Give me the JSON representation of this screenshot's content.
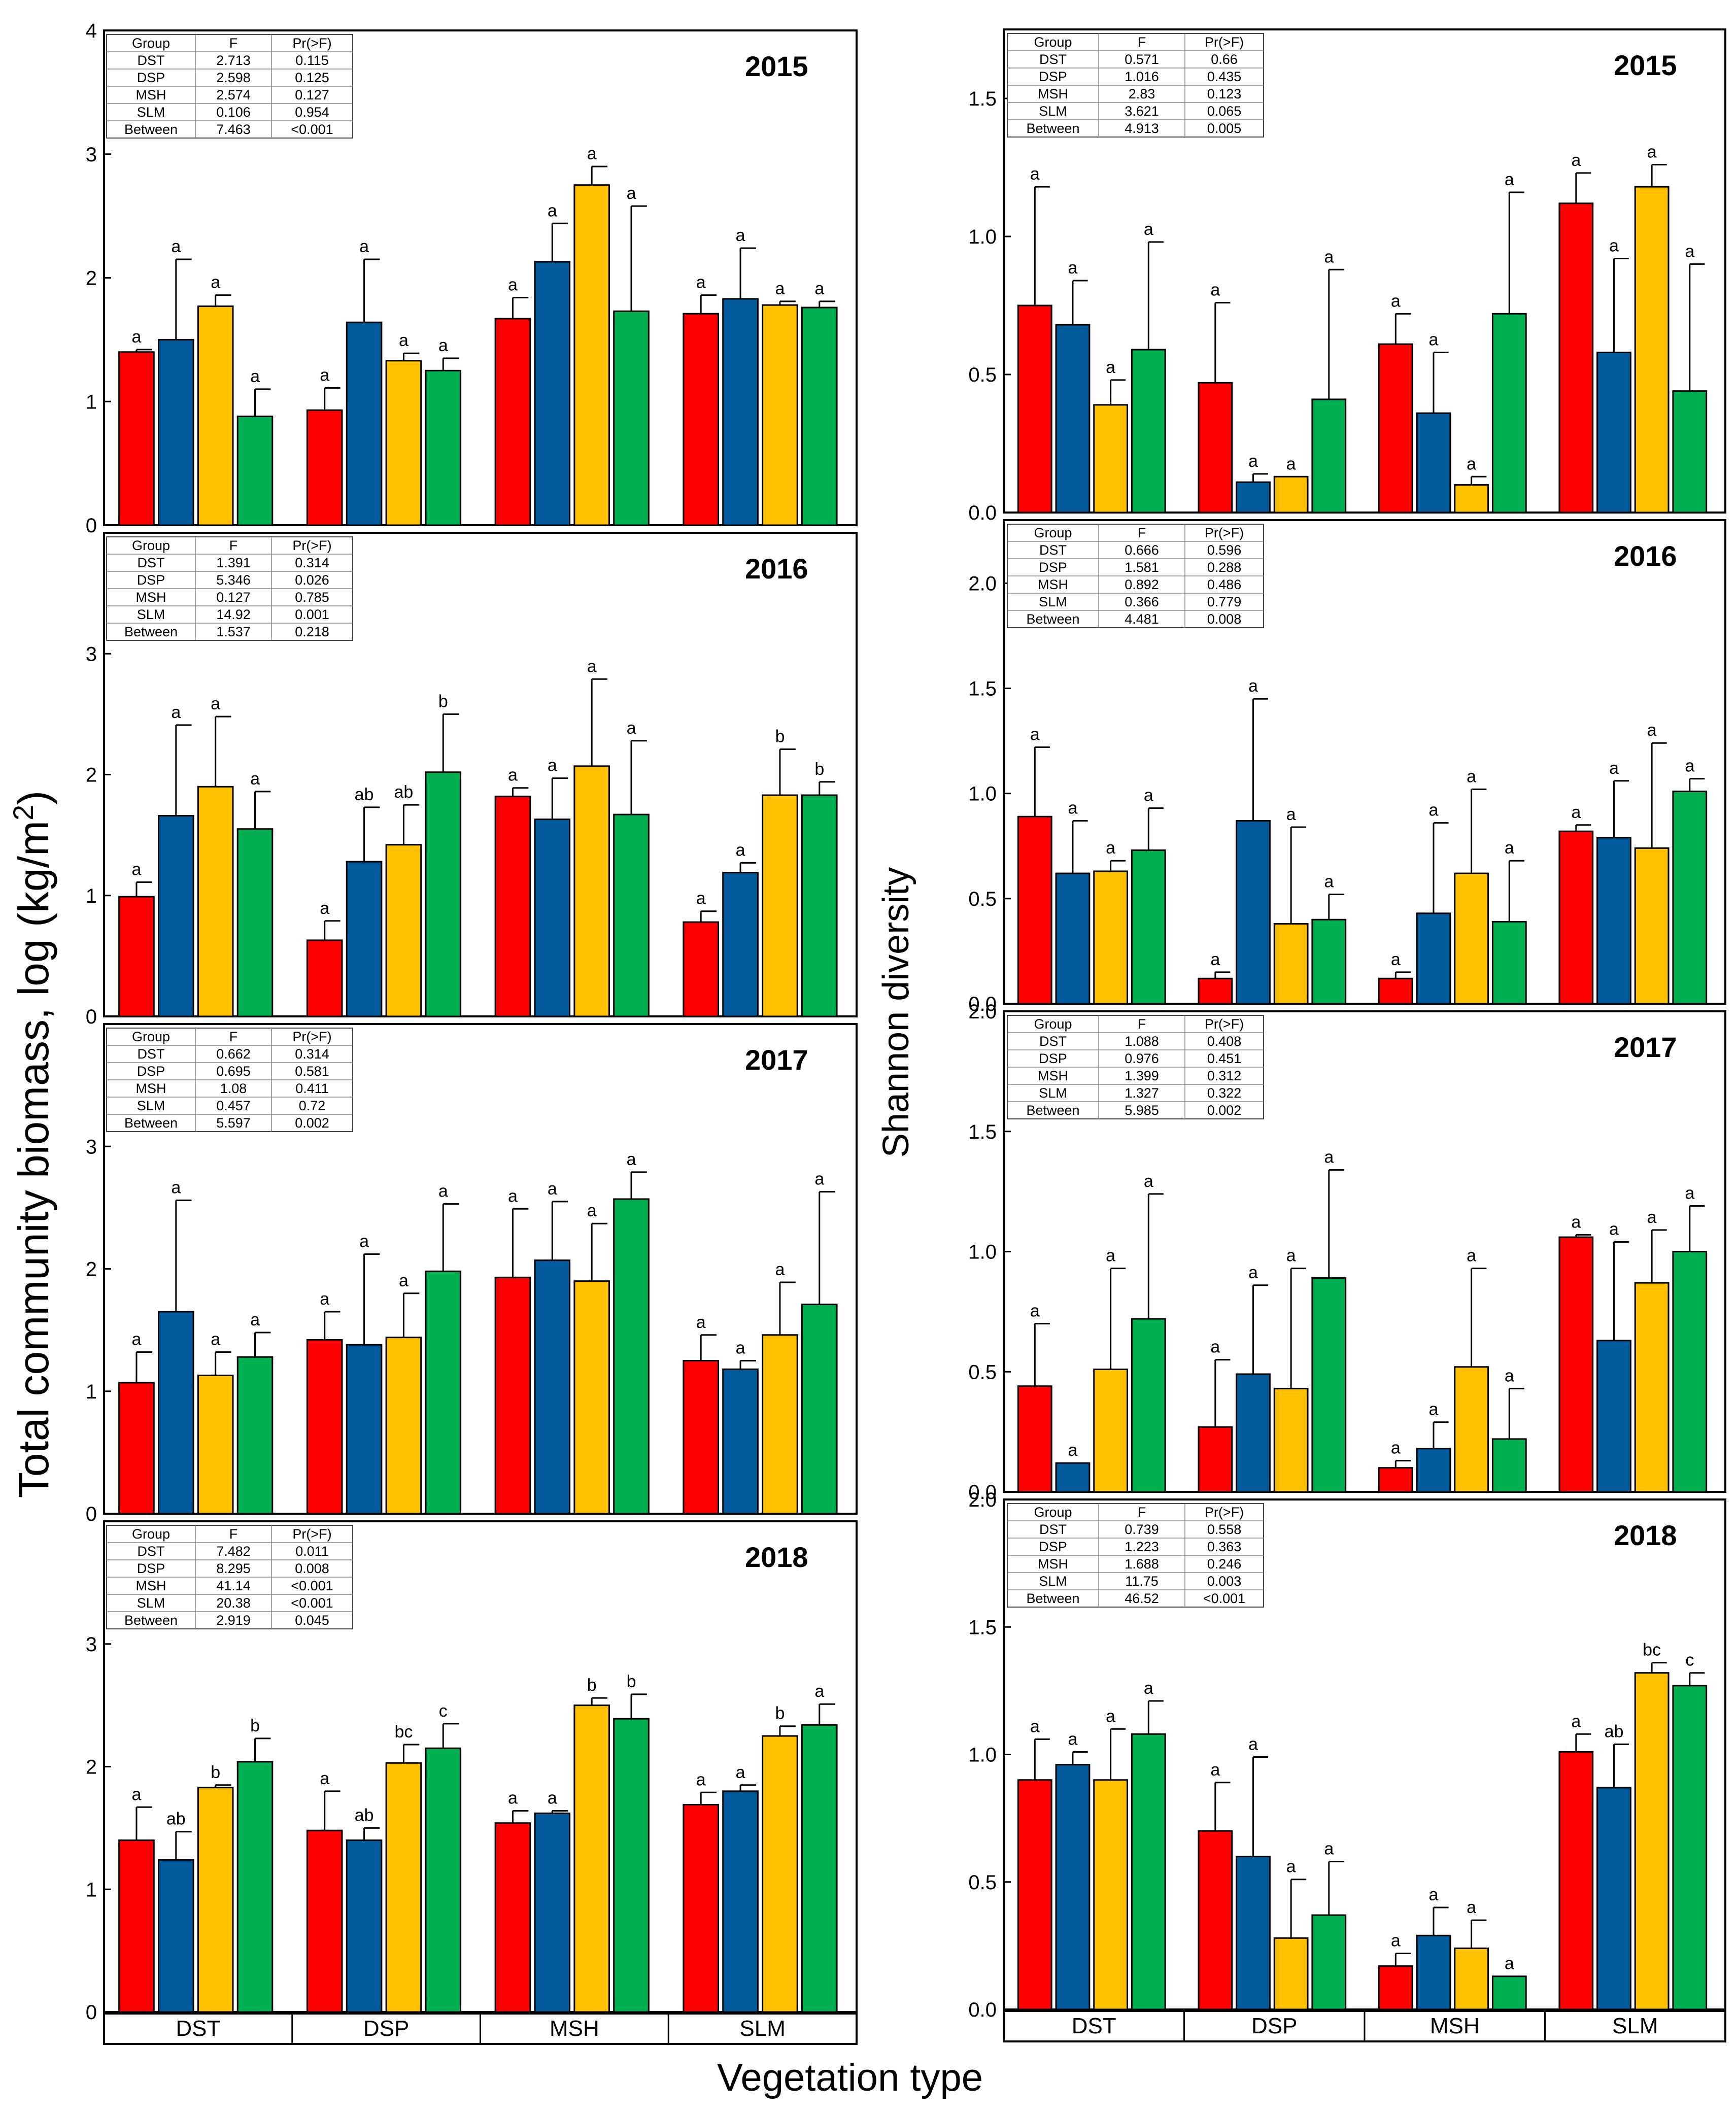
{
  "figure": {
    "ylabel_left": "Total community biomass, log (kg/m",
    "ylabel_left_sup": "2",
    "ylabel_left_close": ")",
    "ylabel_right": "Shannon diversity",
    "xlabel": "Vegetation type"
  },
  "colors": [
    "#ff0000",
    "#005a9c",
    "#ffc000",
    "#00b050"
  ],
  "table_header": [
    "Group",
    "F",
    "Pr(>F)"
  ],
  "chart_data": [
    {
      "type": "bar",
      "title": "2015",
      "ylim": [
        0,
        4
      ],
      "yticks": [
        0,
        1,
        2,
        3,
        4
      ],
      "categories": [
        "DST",
        "DSP",
        "MSH",
        "SLM"
      ],
      "values": [
        [
          1.4,
          1.5,
          1.77,
          0.88
        ],
        [
          0.93,
          1.64,
          1.33,
          1.25
        ],
        [
          1.67,
          2.13,
          2.75,
          1.73
        ],
        [
          1.71,
          1.83,
          1.78,
          1.76
        ]
      ],
      "errors": [
        [
          0.02,
          0.65,
          0.09,
          0.22
        ],
        [
          0.18,
          0.51,
          0.06,
          0.1
        ],
        [
          0.17,
          0.31,
          0.15,
          0.85
        ],
        [
          0.15,
          0.41,
          0.03,
          0.05
        ]
      ],
      "letters": [
        [
          "a",
          "a",
          "a",
          "a"
        ],
        [
          "a",
          "a",
          "a",
          "a"
        ],
        [
          "a",
          "a",
          "a",
          "a"
        ],
        [
          "a",
          "a",
          "a",
          "a"
        ]
      ],
      "anova": [
        [
          "DST",
          "2.713",
          "0.115"
        ],
        [
          "DSP",
          "2.598",
          "0.125"
        ],
        [
          "MSH",
          "2.574",
          "0.127"
        ],
        [
          "SLM",
          "0.106",
          "0.954"
        ],
        [
          "Between",
          "7.463",
          "<0.001"
        ]
      ]
    },
    {
      "type": "bar",
      "title": "2016",
      "ylim": [
        0,
        4
      ],
      "yticks": [
        0,
        1,
        2,
        3
      ],
      "categories": [
        "DST",
        "DSP",
        "MSH",
        "SLM"
      ],
      "values": [
        [
          0.99,
          1.66,
          1.9,
          1.55
        ],
        [
          0.63,
          1.28,
          1.42,
          2.02
        ],
        [
          1.82,
          1.63,
          2.07,
          1.67
        ],
        [
          0.78,
          1.19,
          1.83,
          1.83
        ]
      ],
      "errors": [
        [
          0.12,
          0.75,
          0.58,
          0.31
        ],
        [
          0.16,
          0.45,
          0.33,
          0.48
        ],
        [
          0.07,
          0.34,
          0.72,
          0.61
        ],
        [
          0.09,
          0.08,
          0.38,
          0.11
        ]
      ],
      "letters": [
        [
          "a",
          "a",
          "a",
          "a"
        ],
        [
          "a",
          "ab",
          "ab",
          "b"
        ],
        [
          "a",
          "a",
          "a",
          "a"
        ],
        [
          "a",
          "a",
          "b",
          "b"
        ]
      ],
      "anova": [
        [
          "DST",
          "1.391",
          "0.314"
        ],
        [
          "DSP",
          "5.346",
          "0.026"
        ],
        [
          "MSH",
          "0.127",
          "0.785"
        ],
        [
          "SLM",
          "14.92",
          "0.001"
        ],
        [
          "Between",
          "1.537",
          "0.218"
        ]
      ]
    },
    {
      "type": "bar",
      "title": "2017",
      "ylim": [
        0,
        4
      ],
      "yticks": [
        0,
        1,
        2,
        3
      ],
      "categories": [
        "DST",
        "DSP",
        "MSH",
        "SLM"
      ],
      "values": [
        [
          1.07,
          1.65,
          1.13,
          1.28
        ],
        [
          1.42,
          1.38,
          1.44,
          1.98
        ],
        [
          1.93,
          2.07,
          1.9,
          2.57
        ],
        [
          1.25,
          1.18,
          1.46,
          1.71
        ]
      ],
      "errors": [
        [
          0.25,
          0.91,
          0.19,
          0.2
        ],
        [
          0.23,
          0.74,
          0.36,
          0.55
        ],
        [
          0.56,
          0.48,
          0.47,
          0.22
        ],
        [
          0.21,
          0.07,
          0.43,
          0.92
        ]
      ],
      "letters": [
        [
          "a",
          "a",
          "a",
          "a"
        ],
        [
          "a",
          "a",
          "a",
          "a"
        ],
        [
          "a",
          "a",
          "a",
          "a"
        ],
        [
          "a",
          "a",
          "a",
          "a"
        ]
      ],
      "anova": [
        [
          "DST",
          "0.662",
          "0.314"
        ],
        [
          "DSP",
          "0.695",
          "0.581"
        ],
        [
          "MSH",
          "1.08",
          "0.411"
        ],
        [
          "SLM",
          "0.457",
          "0.72"
        ],
        [
          "Between",
          "5.597",
          "0.002"
        ]
      ]
    },
    {
      "type": "bar",
      "title": "2018",
      "ylim": [
        0,
        4
      ],
      "yticks": [
        0,
        1,
        2,
        3
      ],
      "categories": [
        "DST",
        "DSP",
        "MSH",
        "SLM"
      ],
      "values": [
        [
          1.4,
          1.24,
          1.83,
          2.04
        ],
        [
          1.48,
          1.4,
          2.03,
          2.15
        ],
        [
          1.54,
          1.62,
          2.5,
          2.39
        ],
        [
          1.69,
          1.8,
          2.25,
          2.34
        ]
      ],
      "errors": [
        [
          0.27,
          0.23,
          0.02,
          0.19
        ],
        [
          0.32,
          0.1,
          0.15,
          0.2
        ],
        [
          0.1,
          0.02,
          0.06,
          0.2
        ],
        [
          0.1,
          0.05,
          0.08,
          0.17
        ]
      ],
      "letters": [
        [
          "a",
          "ab",
          "b",
          "b"
        ],
        [
          "a",
          "ab",
          "bc",
          "c"
        ],
        [
          "a",
          "a",
          "b",
          "b"
        ],
        [
          "a",
          "a",
          "b",
          "a"
        ]
      ],
      "anova": [
        [
          "DST",
          "7.482",
          "0.011"
        ],
        [
          "DSP",
          "8.295",
          "0.008"
        ],
        [
          "MSH",
          "41.14",
          "<0.001"
        ],
        [
          "SLM",
          "20.38",
          "<0.001"
        ],
        [
          "Between",
          "2.919",
          "0.045"
        ]
      ]
    },
    {
      "type": "bar",
      "title": "2015",
      "ylim": [
        0,
        1.75
      ],
      "yticks": [
        0.0,
        0.5,
        1.0,
        1.5
      ],
      "categories": [
        "DST",
        "DSP",
        "MSH",
        "SLM"
      ],
      "values": [
        [
          0.75,
          0.68,
          0.39,
          0.59
        ],
        [
          0.47,
          0.11,
          0.13,
          0.41
        ],
        [
          0.61,
          0.36,
          0.1,
          0.72
        ],
        [
          1.12,
          0.58,
          1.18,
          0.44
        ]
      ],
      "errors": [
        [
          0.43,
          0.16,
          0.09,
          0.39
        ],
        [
          0.29,
          0.03,
          0.0,
          0.47
        ],
        [
          0.11,
          0.22,
          0.03,
          0.44
        ],
        [
          0.11,
          0.34,
          0.08,
          0.46
        ]
      ],
      "letters": [
        [
          "a",
          "a",
          "a",
          "a"
        ],
        [
          "a",
          "a",
          "a",
          "a"
        ],
        [
          "a",
          "a",
          "a",
          "a"
        ],
        [
          "a",
          "a",
          "a",
          "a"
        ]
      ],
      "anova": [
        [
          "DST",
          "0.571",
          "0.66"
        ],
        [
          "DSP",
          "1.016",
          "0.435"
        ],
        [
          "MSH",
          "2.83",
          "0.123"
        ],
        [
          "SLM",
          "3.621",
          "0.065"
        ],
        [
          "Between",
          "4.913",
          "0.005"
        ]
      ]
    },
    {
      "type": "bar",
      "title": "2016",
      "ylim": [
        0,
        2.3
      ],
      "yticks": [
        0.0,
        0.5,
        1.0,
        1.5,
        2.0
      ],
      "categories": [
        "DST",
        "DSP",
        "MSH",
        "SLM"
      ],
      "values": [
        [
          0.89,
          0.62,
          0.63,
          0.73
        ],
        [
          0.12,
          0.87,
          0.38,
          0.4
        ],
        [
          0.12,
          0.43,
          0.62,
          0.39
        ],
        [
          0.82,
          0.79,
          0.74,
          1.01
        ]
      ],
      "errors": [
        [
          0.33,
          0.25,
          0.05,
          0.2
        ],
        [
          0.03,
          0.58,
          0.46,
          0.12
        ],
        [
          0.03,
          0.43,
          0.4,
          0.29
        ],
        [
          0.03,
          0.27,
          0.5,
          0.06
        ]
      ],
      "letters": [
        [
          "a",
          "a",
          "a",
          "a"
        ],
        [
          "a",
          "a",
          "a",
          "a"
        ],
        [
          "a",
          "a",
          "a",
          "a"
        ],
        [
          "a",
          "a",
          "a",
          "a"
        ]
      ],
      "anova": [
        [
          "DST",
          "0.666",
          "0.596"
        ],
        [
          "DSP",
          "1.581",
          "0.288"
        ],
        [
          "MSH",
          "0.892",
          "0.486"
        ],
        [
          "SLM",
          "0.366",
          "0.779"
        ],
        [
          "Between",
          "4.481",
          "0.008"
        ]
      ]
    },
    {
      "type": "bar",
      "title": "2017",
      "ylim": [
        0,
        2.0
      ],
      "yticks": [
        0.0,
        0.5,
        1.0,
        1.5,
        2.0
      ],
      "categories": [
        "DST",
        "DSP",
        "MSH",
        "SLM"
      ],
      "values": [
        [
          0.44,
          0.12,
          0.51,
          0.72
        ],
        [
          0.27,
          0.49,
          0.43,
          0.89
        ],
        [
          0.1,
          0.18,
          0.52,
          0.22
        ],
        [
          1.06,
          0.63,
          0.87,
          1.0
        ]
      ],
      "errors": [
        [
          0.26,
          0.0,
          0.42,
          0.52
        ],
        [
          0.28,
          0.37,
          0.5,
          0.45
        ],
        [
          0.03,
          0.11,
          0.41,
          0.21
        ],
        [
          0.01,
          0.41,
          0.22,
          0.19
        ]
      ],
      "letters": [
        [
          "a",
          "a",
          "a",
          "a"
        ],
        [
          "a",
          "a",
          "a",
          "a"
        ],
        [
          "a",
          "a",
          "a",
          "a"
        ],
        [
          "a",
          "a",
          "a",
          "a"
        ]
      ],
      "anova": [
        [
          "DST",
          "1.088",
          "0.408"
        ],
        [
          "DSP",
          "0.976",
          "0.451"
        ],
        [
          "MSH",
          "1.399",
          "0.312"
        ],
        [
          "SLM",
          "1.327",
          "0.322"
        ],
        [
          "Between",
          "5.985",
          "0.002"
        ]
      ]
    },
    {
      "type": "bar",
      "title": "2018",
      "ylim": [
        0,
        2.0
      ],
      "yticks": [
        0.0,
        0.5,
        1.0,
        1.5,
        2.0
      ],
      "categories": [
        "DST",
        "DSP",
        "MSH",
        "SLM"
      ],
      "values": [
        [
          0.9,
          0.96,
          0.9,
          1.08
        ],
        [
          0.7,
          0.6,
          0.28,
          0.37
        ],
        [
          0.17,
          0.29,
          0.24,
          0.13
        ],
        [
          1.01,
          0.87,
          1.32,
          1.27
        ]
      ],
      "errors": [
        [
          0.16,
          0.05,
          0.2,
          0.13
        ],
        [
          0.19,
          0.39,
          0.23,
          0.21
        ],
        [
          0.05,
          0.11,
          0.11,
          0.0
        ],
        [
          0.07,
          0.17,
          0.04,
          0.05
        ]
      ],
      "letters": [
        [
          "a",
          "a",
          "a",
          "a"
        ],
        [
          "a",
          "a",
          "a",
          "a"
        ],
        [
          "a",
          "a",
          "a",
          "a"
        ],
        [
          "a",
          "ab",
          "bc",
          "c"
        ]
      ],
      "anova": [
        [
          "DST",
          "0.739",
          "0.558"
        ],
        [
          "DSP",
          "1.223",
          "0.363"
        ],
        [
          "MSH",
          "1.688",
          "0.246"
        ],
        [
          "SLM",
          "11.75",
          "0.003"
        ],
        [
          "Between",
          "46.52",
          "<0.001"
        ]
      ]
    }
  ]
}
